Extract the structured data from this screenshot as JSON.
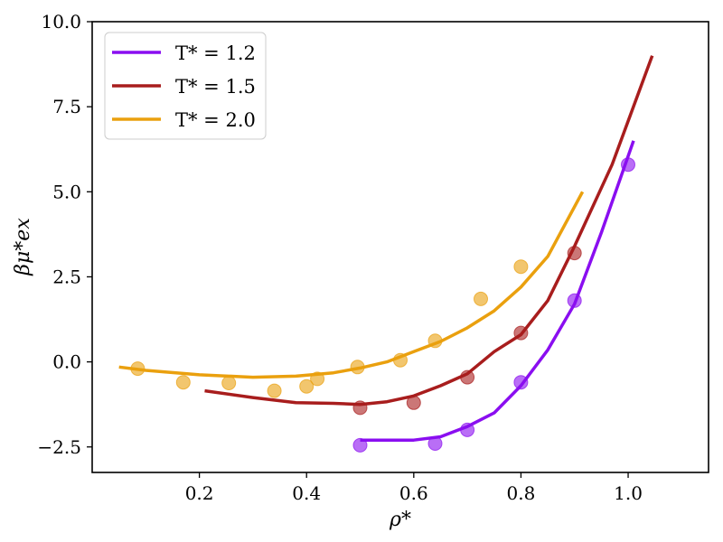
{
  "chart_data": {
    "type": "line",
    "xlabel": "ρ*",
    "ylabel": "βμ*ex",
    "xlim": [
      0.0,
      1.15
    ],
    "ylim": [
      -3.25,
      10.0
    ],
    "x_ticks": [
      0.2,
      0.4,
      0.6,
      0.8,
      1.0
    ],
    "x_tick_labels": [
      "0.2",
      "0.4",
      "0.6",
      "0.8",
      "1.0"
    ],
    "y_ticks": [
      -2.5,
      0.0,
      2.5,
      5.0,
      7.5,
      10.0
    ],
    "y_tick_labels": [
      "−2.5",
      "0.0",
      "2.5",
      "5.0",
      "7.5",
      "10.0"
    ],
    "legend_position": "upper-left",
    "series": [
      {
        "name": "T* = 1.2",
        "color": "#8a0ef0",
        "line": [
          [
            0.5,
            -2.3
          ],
          [
            0.55,
            -2.3
          ],
          [
            0.6,
            -2.3
          ],
          [
            0.65,
            -2.2
          ],
          [
            0.7,
            -1.9
          ],
          [
            0.75,
            -1.5
          ],
          [
            0.8,
            -0.7
          ],
          [
            0.85,
            0.35
          ],
          [
            0.9,
            1.7
          ],
          [
            0.95,
            3.8
          ],
          [
            1.01,
            6.5
          ]
        ],
        "points": [
          [
            0.5,
            -2.45
          ],
          [
            0.64,
            -2.4
          ],
          [
            0.7,
            -2.0
          ],
          [
            0.8,
            -0.6
          ],
          [
            0.9,
            1.8
          ],
          [
            1.0,
            5.8
          ]
        ]
      },
      {
        "name": "T* = 1.5",
        "color": "#a81d1d",
        "line": [
          [
            0.21,
            -0.85
          ],
          [
            0.3,
            -1.05
          ],
          [
            0.38,
            -1.2
          ],
          [
            0.45,
            -1.22
          ],
          [
            0.5,
            -1.25
          ],
          [
            0.55,
            -1.17
          ],
          [
            0.6,
            -1.0
          ],
          [
            0.65,
            -0.7
          ],
          [
            0.7,
            -0.35
          ],
          [
            0.75,
            0.3
          ],
          [
            0.8,
            0.8
          ],
          [
            0.85,
            1.8
          ],
          [
            0.9,
            3.4
          ],
          [
            0.97,
            5.8
          ],
          [
            1.045,
            9.0
          ]
        ],
        "points": [
          [
            0.5,
            -1.35
          ],
          [
            0.6,
            -1.2
          ],
          [
            0.7,
            -0.45
          ],
          [
            0.8,
            0.85
          ],
          [
            0.9,
            3.2
          ]
        ]
      },
      {
        "name": "T* = 2.0",
        "color": "#eaa00e",
        "line": [
          [
            0.05,
            -0.15
          ],
          [
            0.1,
            -0.25
          ],
          [
            0.2,
            -0.38
          ],
          [
            0.3,
            -0.45
          ],
          [
            0.38,
            -0.42
          ],
          [
            0.45,
            -0.32
          ],
          [
            0.5,
            -0.18
          ],
          [
            0.55,
            0.0
          ],
          [
            0.6,
            0.3
          ],
          [
            0.65,
            0.6
          ],
          [
            0.7,
            1.0
          ],
          [
            0.75,
            1.5
          ],
          [
            0.8,
            2.2
          ],
          [
            0.85,
            3.1
          ],
          [
            0.915,
            5.0
          ]
        ],
        "points": [
          [
            0.085,
            -0.2
          ],
          [
            0.17,
            -0.6
          ],
          [
            0.255,
            -0.62
          ],
          [
            0.34,
            -0.85
          ],
          [
            0.4,
            -0.72
          ],
          [
            0.42,
            -0.5
          ],
          [
            0.495,
            -0.15
          ],
          [
            0.575,
            0.05
          ],
          [
            0.64,
            0.62
          ],
          [
            0.725,
            1.85
          ],
          [
            0.8,
            2.8
          ]
        ]
      }
    ]
  }
}
